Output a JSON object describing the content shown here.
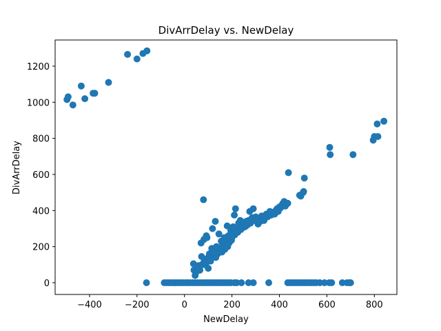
{
  "chart_data": {
    "type": "scatter",
    "title": "DivArrDelay vs. NewDelay",
    "xlabel": "NewDelay",
    "ylabel": "DivArrDelay",
    "xlim": [
      -545,
      895
    ],
    "ylim": [
      -65,
      1345
    ],
    "xticks": [
      -400,
      -200,
      0,
      200,
      400,
      600,
      800
    ],
    "xtick_labels": [
      "−400",
      "−200",
      "0",
      "200",
      "400",
      "600",
      "800"
    ],
    "yticks": [
      0,
      200,
      400,
      600,
      800,
      1000,
      1200
    ],
    "ytick_labels": [
      "0",
      "200",
      "400",
      "600",
      "800",
      "1000",
      "1200"
    ],
    "grid": false,
    "marker_color": "#1f77b4",
    "series": [
      {
        "points": [
          [
            -495,
            1015
          ],
          [
            -490,
            1030
          ],
          [
            -470,
            985
          ],
          [
            -435,
            1090
          ],
          [
            -420,
            1020
          ],
          [
            -385,
            1050
          ],
          [
            -378,
            1050
          ],
          [
            -320,
            1110
          ],
          [
            -240,
            1265
          ],
          [
            -200,
            1240
          ],
          [
            -175,
            1270
          ],
          [
            -158,
            1285
          ],
          [
            -160,
            0
          ],
          [
            -85,
            0
          ],
          [
            -75,
            0
          ],
          [
            -65,
            0
          ],
          [
            -55,
            0
          ],
          [
            -45,
            0
          ],
          [
            -35,
            0
          ],
          [
            -25,
            0
          ],
          [
            -15,
            0
          ],
          [
            -5,
            0
          ],
          [
            5,
            0
          ],
          [
            15,
            0
          ],
          [
            25,
            0
          ],
          [
            35,
            0
          ],
          [
            45,
            0
          ],
          [
            55,
            0
          ],
          [
            65,
            0
          ],
          [
            75,
            0
          ],
          [
            85,
            0
          ],
          [
            95,
            0
          ],
          [
            105,
            0
          ],
          [
            115,
            0
          ],
          [
            125,
            0
          ],
          [
            135,
            0
          ],
          [
            145,
            0
          ],
          [
            155,
            0
          ],
          [
            165,
            0
          ],
          [
            175,
            0
          ],
          [
            185,
            0
          ],
          [
            195,
            0
          ],
          [
            210,
            0
          ],
          [
            220,
            0
          ],
          [
            240,
            0
          ],
          [
            270,
            0
          ],
          [
            290,
            0
          ],
          [
            355,
            0
          ],
          [
            435,
            0
          ],
          [
            445,
            0
          ],
          [
            455,
            0
          ],
          [
            465,
            0
          ],
          [
            475,
            0
          ],
          [
            485,
            0
          ],
          [
            495,
            0
          ],
          [
            505,
            0
          ],
          [
            515,
            0
          ],
          [
            525,
            0
          ],
          [
            535,
            0
          ],
          [
            545,
            0
          ],
          [
            555,
            0
          ],
          [
            570,
            0
          ],
          [
            590,
            0
          ],
          [
            610,
            0
          ],
          [
            620,
            0
          ],
          [
            665,
            0
          ],
          [
            685,
            0
          ],
          [
            695,
            0
          ],
          [
            700,
            0
          ],
          [
            38,
            105
          ],
          [
            40,
            70
          ],
          [
            45,
            40
          ],
          [
            50,
            60
          ],
          [
            55,
            85
          ],
          [
            60,
            95
          ],
          [
            65,
            70
          ],
          [
            70,
            220
          ],
          [
            72,
            145
          ],
          [
            75,
            100
          ],
          [
            80,
            110
          ],
          [
            80,
            460
          ],
          [
            82,
            240
          ],
          [
            85,
            120
          ],
          [
            88,
            100
          ],
          [
            90,
            130
          ],
          [
            92,
            260
          ],
          [
            95,
            115
          ],
          [
            95,
            250
          ],
          [
            100,
            140
          ],
          [
            100,
            80
          ],
          [
            105,
            160
          ],
          [
            108,
            130
          ],
          [
            110,
            120
          ],
          [
            115,
            190
          ],
          [
            118,
            300
          ],
          [
            120,
            150
          ],
          [
            125,
            180
          ],
          [
            128,
            170
          ],
          [
            130,
            340
          ],
          [
            132,
            140
          ],
          [
            135,
            200
          ],
          [
            140,
            160
          ],
          [
            145,
            270
          ],
          [
            145,
            190
          ],
          [
            150,
            180
          ],
          [
            155,
            230
          ],
          [
            158,
            170
          ],
          [
            160,
            220
          ],
          [
            165,
            200
          ],
          [
            168,
            250
          ],
          [
            170,
            185
          ],
          [
            175,
            240
          ],
          [
            178,
            210
          ],
          [
            180,
            315
          ],
          [
            182,
            200
          ],
          [
            185,
            260
          ],
          [
            188,
            220
          ],
          [
            190,
            240
          ],
          [
            195,
            290
          ],
          [
            198,
            235
          ],
          [
            200,
            250
          ],
          [
            205,
            310
          ],
          [
            208,
            275
          ],
          [
            210,
            375
          ],
          [
            212,
            265
          ],
          [
            215,
            410
          ],
          [
            218,
            290
          ],
          [
            220,
            300
          ],
          [
            225,
            280
          ],
          [
            228,
            330
          ],
          [
            230,
            310
          ],
          [
            235,
            345
          ],
          [
            238,
            295
          ],
          [
            240,
            320
          ],
          [
            245,
            305
          ],
          [
            250,
            330
          ],
          [
            255,
            310
          ],
          [
            260,
            340
          ],
          [
            265,
            320
          ],
          [
            270,
            345
          ],
          [
            275,
            395
          ],
          [
            278,
            330
          ],
          [
            280,
            350
          ],
          [
            285,
            360
          ],
          [
            290,
            410
          ],
          [
            295,
            345
          ],
          [
            300,
            365
          ],
          [
            305,
            350
          ],
          [
            310,
            325
          ],
          [
            315,
            355
          ],
          [
            320,
            340
          ],
          [
            325,
            370
          ],
          [
            330,
            355
          ],
          [
            335,
            345
          ],
          [
            340,
            360
          ],
          [
            345,
            380
          ],
          [
            350,
            365
          ],
          [
            355,
            375
          ],
          [
            360,
            395
          ],
          [
            365,
            375
          ],
          [
            370,
            385
          ],
          [
            375,
            390
          ],
          [
            380,
            380
          ],
          [
            385,
            400
          ],
          [
            390,
            410
          ],
          [
            395,
            395
          ],
          [
            400,
            420
          ],
          [
            405,
            415
          ],
          [
            410,
            430
          ],
          [
            415,
            440
          ],
          [
            420,
            450
          ],
          [
            425,
            425
          ],
          [
            430,
            435
          ],
          [
            435,
            440
          ],
          [
            438,
            610
          ],
          [
            485,
            485
          ],
          [
            490,
            480
          ],
          [
            500,
            500
          ],
          [
            502,
            505
          ],
          [
            505,
            580
          ],
          [
            612,
            750
          ],
          [
            614,
            710
          ],
          [
            710,
            710
          ],
          [
            795,
            790
          ],
          [
            800,
            810
          ],
          [
            815,
            810
          ],
          [
            812,
            880
          ],
          [
            840,
            895
          ]
        ]
      }
    ]
  }
}
